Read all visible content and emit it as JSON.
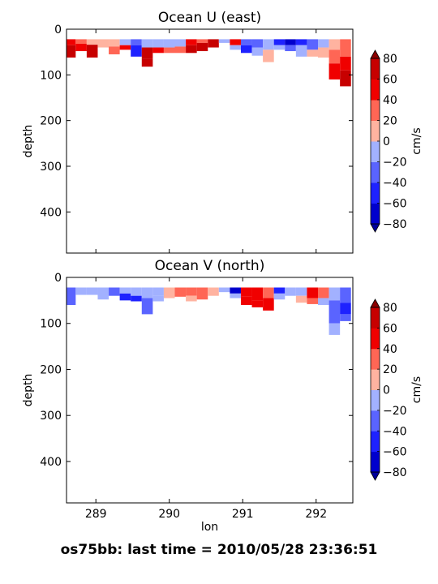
{
  "figure": {
    "suptitle": "os75bb: last time = 2010/05/28 23:36:51"
  },
  "chart_data": [
    {
      "type": "heatmap",
      "title": "Ocean U (east)",
      "xlabel": "",
      "ylabel": "depth",
      "xlim": [
        288.6,
        292.5
      ],
      "ylim": [
        490,
        0
      ],
      "y_inverted": true,
      "yticks": [
        0,
        100,
        200,
        300,
        400
      ],
      "xticks": [
        289,
        290,
        291,
        292
      ],
      "show_xtick_labels": false,
      "colorbar": {
        "label": "cm/s",
        "levels": [
          -80,
          -60,
          -40,
          -20,
          0,
          20,
          40,
          60,
          80
        ],
        "tick_labels": [
          "−80",
          "−60",
          "−40",
          "−20",
          "0",
          "20",
          "40",
          "60",
          "80"
        ],
        "colors": [
          "#0000cd",
          "#1e22ff",
          "#5a64ff",
          "#a2b1ff",
          "#ffb3a0",
          "#ff6655",
          "#f00000",
          "#c70000"
        ],
        "extend": "both",
        "under_color": "#00009a",
        "over_color": "#8b0000"
      },
      "profiles": [
        {
          "lon": 288.65,
          "bins": [
            {
              "d0": 22,
              "d1": 35,
              "v": 50
            },
            {
              "d0": 35,
              "d1": 62,
              "v": 70
            }
          ]
        },
        {
          "lon": 288.8,
          "bins": [
            {
              "d0": 22,
              "d1": 32,
              "v": 30
            },
            {
              "d0": 32,
              "d1": 48,
              "v": 45
            }
          ]
        },
        {
          "lon": 288.95,
          "bins": [
            {
              "d0": 22,
              "d1": 34,
              "v": 10
            },
            {
              "d0": 34,
              "d1": 62,
              "v": 65
            }
          ]
        },
        {
          "lon": 289.1,
          "bins": [
            {
              "d0": 22,
              "d1": 40,
              "v": 15
            }
          ]
        },
        {
          "lon": 289.25,
          "bins": [
            {
              "d0": 22,
              "d1": 38,
              "v": 5
            },
            {
              "d0": 38,
              "d1": 55,
              "v": 25
            }
          ]
        },
        {
          "lon": 289.4,
          "bins": [
            {
              "d0": 22,
              "d1": 35,
              "v": -15
            },
            {
              "d0": 35,
              "d1": 45,
              "v": 45
            }
          ]
        },
        {
          "lon": 289.55,
          "bins": [
            {
              "d0": 22,
              "d1": 35,
              "v": -25
            },
            {
              "d0": 35,
              "d1": 60,
              "v": -55
            }
          ]
        },
        {
          "lon": 289.7,
          "bins": [
            {
              "d0": 22,
              "d1": 40,
              "v": -15
            },
            {
              "d0": 40,
              "d1": 65,
              "v": 65
            },
            {
              "d0": 65,
              "d1": 82,
              "v": 70
            }
          ]
        },
        {
          "lon": 289.85,
          "bins": [
            {
              "d0": 22,
              "d1": 40,
              "v": -10
            },
            {
              "d0": 40,
              "d1": 52,
              "v": 45
            }
          ]
        },
        {
          "lon": 290.0,
          "bins": [
            {
              "d0": 22,
              "d1": 40,
              "v": -10
            },
            {
              "d0": 40,
              "d1": 52,
              "v": 30
            }
          ]
        },
        {
          "lon": 290.15,
          "bins": [
            {
              "d0": 22,
              "d1": 38,
              "v": -5
            },
            {
              "d0": 38,
              "d1": 52,
              "v": 25
            }
          ]
        },
        {
          "lon": 290.3,
          "bins": [
            {
              "d0": 22,
              "d1": 35,
              "v": 45
            },
            {
              "d0": 35,
              "d1": 52,
              "v": 70
            }
          ]
        },
        {
          "lon": 290.45,
          "bins": [
            {
              "d0": 22,
              "d1": 30,
              "v": 30
            },
            {
              "d0": 30,
              "d1": 48,
              "v": 65
            }
          ]
        },
        {
          "lon": 290.6,
          "bins": [
            {
              "d0": 22,
              "d1": 40,
              "v": 70
            }
          ]
        },
        {
          "lon": 290.75,
          "bins": [
            {
              "d0": 22,
              "d1": 30,
              "v": -15
            }
          ]
        },
        {
          "lon": 290.9,
          "bins": [
            {
              "d0": 22,
              "d1": 35,
              "v": 45
            },
            {
              "d0": 35,
              "d1": 45,
              "v": -20
            }
          ]
        },
        {
          "lon": 291.05,
          "bins": [
            {
              "d0": 22,
              "d1": 35,
              "v": -30
            },
            {
              "d0": 35,
              "d1": 52,
              "v": -60
            }
          ]
        },
        {
          "lon": 291.2,
          "bins": [
            {
              "d0": 22,
              "d1": 40,
              "v": -30
            },
            {
              "d0": 40,
              "d1": 58,
              "v": -15
            }
          ]
        },
        {
          "lon": 291.35,
          "bins": [
            {
              "d0": 22,
              "d1": 45,
              "v": -15
            },
            {
              "d0": 45,
              "d1": 72,
              "v": 15
            }
          ]
        },
        {
          "lon": 291.5,
          "bins": [
            {
              "d0": 22,
              "d1": 35,
              "v": -45
            },
            {
              "d0": 35,
              "d1": 45,
              "v": -15
            }
          ]
        },
        {
          "lon": 291.65,
          "bins": [
            {
              "d0": 22,
              "d1": 35,
              "v": -65
            },
            {
              "d0": 35,
              "d1": 48,
              "v": -30
            }
          ]
        },
        {
          "lon": 291.8,
          "bins": [
            {
              "d0": 22,
              "d1": 35,
              "v": -45
            },
            {
              "d0": 35,
              "d1": 60,
              "v": -20
            }
          ]
        },
        {
          "lon": 291.95,
          "bins": [
            {
              "d0": 22,
              "d1": 45,
              "v": -35
            },
            {
              "d0": 45,
              "d1": 60,
              "v": 15
            }
          ]
        },
        {
          "lon": 292.1,
          "bins": [
            {
              "d0": 22,
              "d1": 40,
              "v": -15
            },
            {
              "d0": 40,
              "d1": 62,
              "v": 10
            }
          ]
        },
        {
          "lon": 292.25,
          "bins": [
            {
              "d0": 22,
              "d1": 45,
              "v": 15
            },
            {
              "d0": 45,
              "d1": 75,
              "v": 30
            },
            {
              "d0": 75,
              "d1": 110,
              "v": 50
            }
          ]
        },
        {
          "lon": 292.4,
          "bins": [
            {
              "d0": 22,
              "d1": 60,
              "v": 20
            },
            {
              "d0": 60,
              "d1": 90,
              "v": 45
            },
            {
              "d0": 90,
              "d1": 125,
              "v": 60
            }
          ]
        }
      ]
    },
    {
      "type": "heatmap",
      "title": "Ocean V (north)",
      "xlabel": "lon",
      "ylabel": "depth",
      "xlim": [
        288.6,
        292.5
      ],
      "ylim": [
        490,
        0
      ],
      "y_inverted": true,
      "yticks": [
        0,
        100,
        200,
        300,
        400
      ],
      "xticks": [
        289,
        290,
        291,
        292
      ],
      "show_xtick_labels": true,
      "colorbar": {
        "label": "cm/s",
        "levels": [
          -80,
          -60,
          -40,
          -20,
          0,
          20,
          40,
          60,
          80
        ],
        "tick_labels": [
          "−80",
          "−60",
          "−40",
          "−20",
          "0",
          "20",
          "40",
          "60",
          "80"
        ],
        "colors": [
          "#0000cd",
          "#1e22ff",
          "#5a64ff",
          "#a2b1ff",
          "#ffb3a0",
          "#ff6655",
          "#f00000",
          "#c70000"
        ],
        "extend": "both",
        "under_color": "#00009a",
        "over_color": "#8b0000"
      },
      "profiles": [
        {
          "lon": 288.65,
          "bins": [
            {
              "d0": 22,
              "d1": 60,
              "v": -25
            }
          ]
        },
        {
          "lon": 288.8,
          "bins": [
            {
              "d0": 22,
              "d1": 38,
              "v": -15
            }
          ]
        },
        {
          "lon": 288.95,
          "bins": [
            {
              "d0": 22,
              "d1": 38,
              "v": -20
            }
          ]
        },
        {
          "lon": 289.1,
          "bins": [
            {
              "d0": 22,
              "d1": 48,
              "v": -10
            }
          ]
        },
        {
          "lon": 289.25,
          "bins": [
            {
              "d0": 22,
              "d1": 40,
              "v": -25
            }
          ]
        },
        {
          "lon": 289.4,
          "bins": [
            {
              "d0": 22,
              "d1": 35,
              "v": -15
            },
            {
              "d0": 35,
              "d1": 50,
              "v": -45
            }
          ]
        },
        {
          "lon": 289.55,
          "bins": [
            {
              "d0": 22,
              "d1": 40,
              "v": -15
            },
            {
              "d0": 40,
              "d1": 52,
              "v": -60
            }
          ]
        },
        {
          "lon": 289.7,
          "bins": [
            {
              "d0": 22,
              "d1": 45,
              "v": -15
            },
            {
              "d0": 45,
              "d1": 80,
              "v": -25
            }
          ]
        },
        {
          "lon": 289.85,
          "bins": [
            {
              "d0": 22,
              "d1": 40,
              "v": -5
            },
            {
              "d0": 40,
              "d1": 52,
              "v": -15
            }
          ]
        },
        {
          "lon": 290.0,
          "bins": [
            {
              "d0": 22,
              "d1": 45,
              "v": 10
            }
          ]
        },
        {
          "lon": 290.15,
          "bins": [
            {
              "d0": 22,
              "d1": 42,
              "v": 25
            }
          ]
        },
        {
          "lon": 290.3,
          "bins": [
            {
              "d0": 22,
              "d1": 40,
              "v": 30
            },
            {
              "d0": 40,
              "d1": 52,
              "v": 15
            }
          ]
        },
        {
          "lon": 290.45,
          "bins": [
            {
              "d0": 22,
              "d1": 48,
              "v": 25
            }
          ]
        },
        {
          "lon": 290.6,
          "bins": [
            {
              "d0": 22,
              "d1": 40,
              "v": 15
            }
          ]
        },
        {
          "lon": 290.75,
          "bins": [
            {
              "d0": 22,
              "d1": 32,
              "v": -20
            }
          ]
        },
        {
          "lon": 290.9,
          "bins": [
            {
              "d0": 22,
              "d1": 35,
              "v": -65
            },
            {
              "d0": 35,
              "d1": 45,
              "v": -20
            }
          ]
        },
        {
          "lon": 291.05,
          "bins": [
            {
              "d0": 22,
              "d1": 42,
              "v": 45
            },
            {
              "d0": 42,
              "d1": 60,
              "v": 55
            }
          ]
        },
        {
          "lon": 291.2,
          "bins": [
            {
              "d0": 22,
              "d1": 50,
              "v": 50
            },
            {
              "d0": 50,
              "d1": 65,
              "v": 45
            }
          ]
        },
        {
          "lon": 291.35,
          "bins": [
            {
              "d0": 22,
              "d1": 45,
              "v": 25
            },
            {
              "d0": 45,
              "d1": 72,
              "v": 45
            }
          ]
        },
        {
          "lon": 291.5,
          "bins": [
            {
              "d0": 22,
              "d1": 35,
              "v": -45
            },
            {
              "d0": 35,
              "d1": 48,
              "v": -15
            }
          ]
        },
        {
          "lon": 291.65,
          "bins": [
            {
              "d0": 22,
              "d1": 40,
              "v": -20
            }
          ]
        },
        {
          "lon": 291.8,
          "bins": [
            {
              "d0": 22,
              "d1": 40,
              "v": -15
            },
            {
              "d0": 40,
              "d1": 55,
              "v": 10
            }
          ]
        },
        {
          "lon": 291.95,
          "bins": [
            {
              "d0": 22,
              "d1": 45,
              "v": 45
            },
            {
              "d0": 45,
              "d1": 58,
              "v": 25
            }
          ]
        },
        {
          "lon": 292.1,
          "bins": [
            {
              "d0": 22,
              "d1": 45,
              "v": 30
            },
            {
              "d0": 45,
              "d1": 60,
              "v": -10
            }
          ]
        },
        {
          "lon": 292.25,
          "bins": [
            {
              "d0": 22,
              "d1": 50,
              "v": -15
            },
            {
              "d0": 50,
              "d1": 100,
              "v": -30
            },
            {
              "d0": 100,
              "d1": 125,
              "v": -20
            }
          ]
        },
        {
          "lon": 292.4,
          "bins": [
            {
              "d0": 22,
              "d1": 55,
              "v": -30
            },
            {
              "d0": 55,
              "d1": 80,
              "v": -50
            },
            {
              "d0": 80,
              "d1": 95,
              "v": -25
            }
          ]
        }
      ]
    }
  ]
}
